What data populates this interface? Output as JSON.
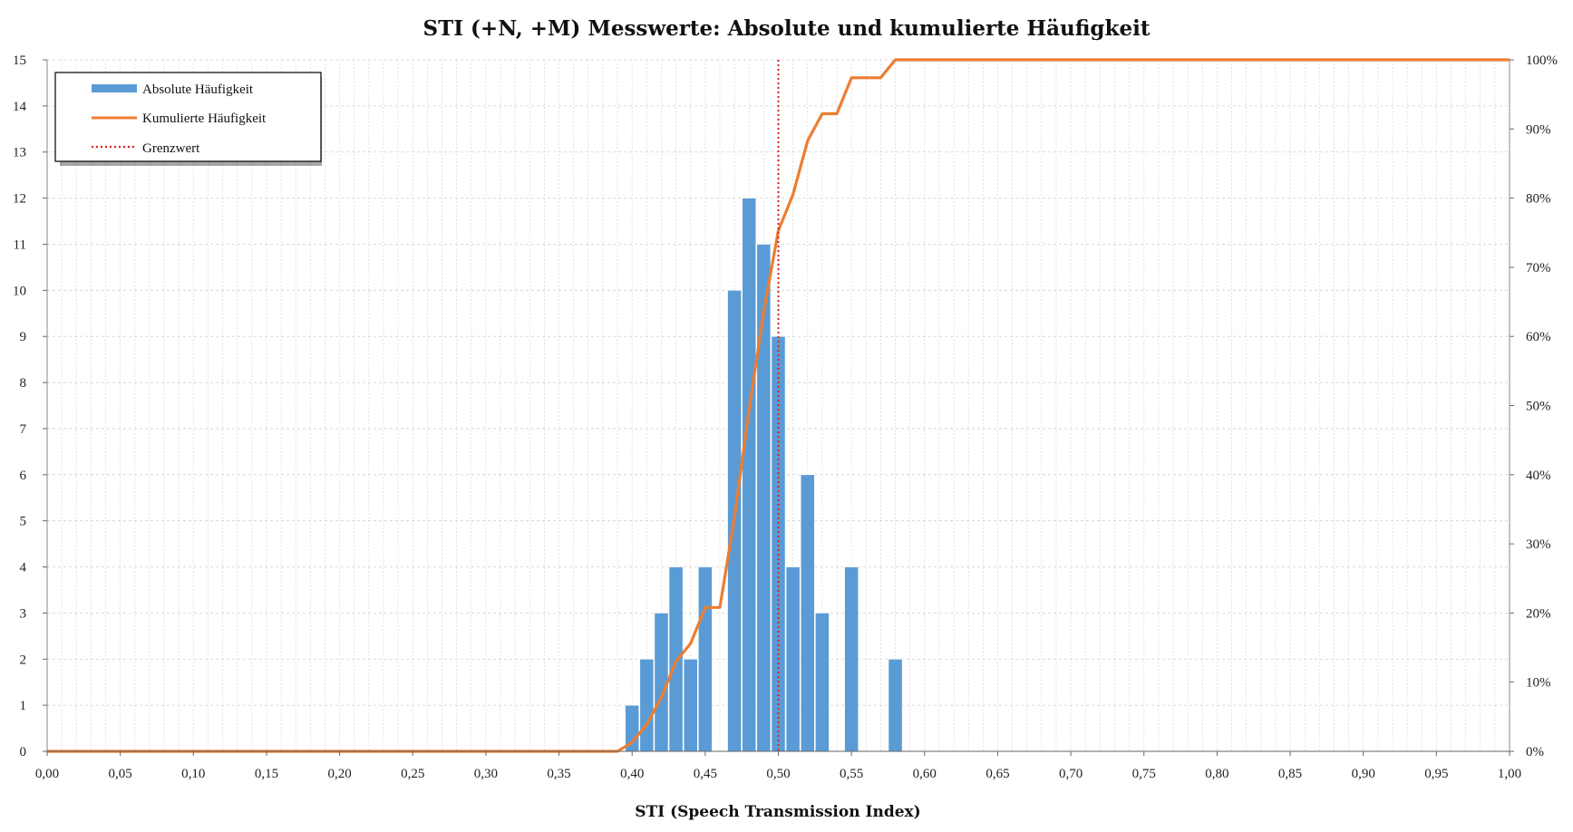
{
  "chart_data": {
    "type": "bar",
    "title": "STI (+N, +M) Messwerte: Absolute und kumulierte Häufigkeit",
    "xlabel": "STI (Speech Transmission Index)",
    "ylabel": "",
    "y2label": "",
    "xlim": [
      0,
      1
    ],
    "ylim": [
      0,
      15
    ],
    "y2lim": [
      0,
      1
    ],
    "grid": true,
    "legend_position": "top-left",
    "x_ticks": [
      "0,00",
      "0,05",
      "0,10",
      "0,15",
      "0,20",
      "0,25",
      "0,30",
      "0,35",
      "0,40",
      "0,45",
      "0,50",
      "0,55",
      "0,60",
      "0,65",
      "0,70",
      "0,75",
      "0,80",
      "0,85",
      "0,90",
      "0,95",
      "1,00"
    ],
    "y_ticks": [
      "0",
      "1",
      "2",
      "3",
      "4",
      "5",
      "6",
      "7",
      "8",
      "9",
      "10",
      "11",
      "12",
      "13",
      "14",
      "15"
    ],
    "y2_ticks": [
      "0%",
      "10%",
      "20%",
      "30%",
      "40%",
      "50%",
      "60%",
      "70%",
      "80%",
      "90%",
      "100%"
    ],
    "series": [
      {
        "name": "Absolute Häufigkeit",
        "type": "bar",
        "color": "#5b9bd5",
        "bin_width": 0.01,
        "x": [
          0.4,
          0.41,
          0.42,
          0.43,
          0.44,
          0.45,
          0.47,
          0.48,
          0.49,
          0.5,
          0.51,
          0.52,
          0.53,
          0.55,
          0.58
        ],
        "values": [
          1,
          2,
          3,
          4,
          2,
          4,
          10,
          12,
          11,
          9,
          4,
          6,
          3,
          4,
          2
        ]
      },
      {
        "name": "Kumulierte Häufigkeit",
        "type": "line",
        "color": "#ed7d31",
        "x": [
          0.0,
          0.39,
          0.4,
          0.41,
          0.42,
          0.43,
          0.44,
          0.45,
          0.46,
          0.47,
          0.48,
          0.49,
          0.5,
          0.51,
          0.52,
          0.53,
          0.54,
          0.55,
          0.56,
          0.57,
          0.58,
          1.0
        ],
        "values": [
          0,
          0,
          0.013,
          0.039,
          0.078,
          0.13,
          0.156,
          0.208,
          0.208,
          0.338,
          0.494,
          0.636,
          0.753,
          0.805,
          0.883,
          0.922,
          0.922,
          0.974,
          0.974,
          0.974,
          1.0,
          1.0
        ]
      },
      {
        "name": "Grenzwert",
        "type": "vline",
        "color": "#e02020",
        "x": 0.5,
        "y_top": 15
      }
    ]
  }
}
